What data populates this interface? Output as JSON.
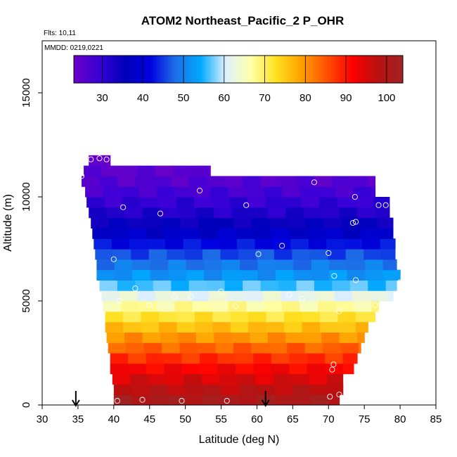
{
  "title": "ATOM2 Northeast_Pacific_2 P_OHR",
  "flights_note": "Flts: 10,11",
  "dates_note": "MMDD: 0219,0221",
  "chart_data": {
    "type": "heatmap",
    "title": "ATOM2 Northeast_Pacific_2 P_OHR",
    "xlabel": "Latitude (deg N)",
    "ylabel": "Altitude (m)",
    "xlim": [
      30,
      85
    ],
    "ylim": [
      0,
      17500
    ],
    "x_ticks": [
      "30",
      "35",
      "40",
      "45",
      "50",
      "55",
      "60",
      "65",
      "70",
      "75",
      "80",
      "85"
    ],
    "y_ticks": [
      "0",
      "5000",
      "10000",
      "15000"
    ],
    "colorbar": {
      "range": [
        23,
        104
      ],
      "ticks": [
        "30",
        "40",
        "50",
        "60",
        "70",
        "80",
        "90",
        "100"
      ],
      "colors": [
        "#6c00c8",
        "#3a00d8",
        "#0000b8",
        "#0000e0",
        "#1e6ee6",
        "#00a8ff",
        "#dff0ff",
        "#ffffa8",
        "#ffe020",
        "#ffa000",
        "#ff5000",
        "#ff0000",
        "#b81010",
        "#a02424"
      ]
    },
    "profile_rows": [
      {
        "alt_bottom": 0,
        "alt_top": 500,
        "lat_min": 40.0,
        "lat_max": 71.5,
        "value": 101
      },
      {
        "alt_bottom": 500,
        "alt_top": 1000,
        "lat_min": 40.0,
        "lat_max": 72.0,
        "value": 98
      },
      {
        "alt_bottom": 1000,
        "alt_top": 1500,
        "lat_min": 39.8,
        "lat_max": 72.0,
        "value": 95
      },
      {
        "alt_bottom": 1500,
        "alt_top": 2000,
        "lat_min": 39.5,
        "lat_max": 73.5,
        "value": 92
      },
      {
        "alt_bottom": 2000,
        "alt_top": 2500,
        "lat_min": 39.5,
        "lat_max": 74.0,
        "value": 88
      },
      {
        "alt_bottom": 2500,
        "alt_top": 3000,
        "lat_min": 39.2,
        "lat_max": 74.5,
        "value": 84
      },
      {
        "alt_bottom": 3000,
        "alt_top": 3500,
        "lat_min": 39.0,
        "lat_max": 75.0,
        "value": 80
      },
      {
        "alt_bottom": 3500,
        "alt_top": 4000,
        "lat_min": 38.8,
        "lat_max": 75.5,
        "value": 76
      },
      {
        "alt_bottom": 4000,
        "alt_top": 4500,
        "lat_min": 38.8,
        "lat_max": 76.5,
        "value": 72
      },
      {
        "alt_bottom": 4500,
        "alt_top": 5000,
        "lat_min": 38.5,
        "lat_max": 77.0,
        "value": 67
      },
      {
        "alt_bottom": 5000,
        "alt_top": 5500,
        "lat_min": 38.3,
        "lat_max": 79.0,
        "value": 62
      },
      {
        "alt_bottom": 5500,
        "alt_top": 6000,
        "lat_min": 38.0,
        "lat_max": 79.5,
        "value": 56
      },
      {
        "alt_bottom": 6000,
        "alt_top": 6500,
        "lat_min": 37.6,
        "lat_max": 80.0,
        "value": 52
      },
      {
        "alt_bottom": 6500,
        "alt_top": 7000,
        "lat_min": 37.6,
        "lat_max": 79.5,
        "value": 49
      },
      {
        "alt_bottom": 7000,
        "alt_top": 7500,
        "lat_min": 37.4,
        "lat_max": 79.3,
        "value": 46
      },
      {
        "alt_bottom": 7500,
        "alt_top": 8000,
        "lat_min": 37.2,
        "lat_max": 79.3,
        "value": 42
      },
      {
        "alt_bottom": 8000,
        "alt_top": 8500,
        "lat_min": 37.0,
        "lat_max": 79.0,
        "value": 38
      },
      {
        "alt_bottom": 8500,
        "alt_top": 9000,
        "lat_min": 36.8,
        "lat_max": 79.0,
        "value": 35
      },
      {
        "alt_bottom": 9000,
        "alt_top": 9500,
        "lat_min": 36.5,
        "lat_max": 78.5,
        "value": 32
      },
      {
        "alt_bottom": 9500,
        "alt_top": 10000,
        "lat_min": 36.2,
        "lat_max": 78.5,
        "value": 30
      },
      {
        "alt_bottom": 10000,
        "alt_top": 10500,
        "lat_min": 36.0,
        "lat_max": 76.5,
        "value": 28
      },
      {
        "alt_bottom": 10500,
        "alt_top": 11000,
        "lat_min": 35.5,
        "lat_max": 76.5,
        "value": 26
      },
      {
        "alt_bottom": 11000,
        "alt_top": 11500,
        "lat_min": 35.8,
        "lat_max": 53.5,
        "value": 25
      },
      {
        "alt_bottom": 11500,
        "alt_top": 12000,
        "lat_min": 36.5,
        "lat_max": 39.5,
        "value": 24
      }
    ],
    "observations": [
      {
        "lat": 40.5,
        "alt": 200
      },
      {
        "lat": 44.0,
        "alt": 250
      },
      {
        "lat": 49.5,
        "alt": 200
      },
      {
        "lat": 55.8,
        "alt": 200
      },
      {
        "lat": 70.2,
        "alt": 400
      },
      {
        "lat": 71.5,
        "alt": 500
      },
      {
        "lat": 70.5,
        "alt": 1700
      },
      {
        "lat": 70.7,
        "alt": 1950
      },
      {
        "lat": 40.8,
        "alt": 5000
      },
      {
        "lat": 45.0,
        "alt": 4800
      },
      {
        "lat": 48.5,
        "alt": 5200
      },
      {
        "lat": 50.8,
        "alt": 5200
      },
      {
        "lat": 55.0,
        "alt": 5450
      },
      {
        "lat": 57.0,
        "alt": 4750
      },
      {
        "lat": 64.5,
        "alt": 5300
      },
      {
        "lat": 66.3,
        "alt": 5100
      },
      {
        "lat": 71.5,
        "alt": 4500
      },
      {
        "lat": 76.5,
        "alt": 4800
      },
      {
        "lat": 80.0,
        "alt": 5900
      },
      {
        "lat": 73.8,
        "alt": 6000
      },
      {
        "lat": 70.8,
        "alt": 6200
      },
      {
        "lat": 43.0,
        "alt": 5600
      },
      {
        "lat": 40.0,
        "alt": 7000
      },
      {
        "lat": 60.2,
        "alt": 7250
      },
      {
        "lat": 63.5,
        "alt": 7650
      },
      {
        "lat": 70.0,
        "alt": 7300
      },
      {
        "lat": 41.3,
        "alt": 9500
      },
      {
        "lat": 46.5,
        "alt": 9200
      },
      {
        "lat": 58.5,
        "alt": 9600
      },
      {
        "lat": 73.4,
        "alt": 8750
      },
      {
        "lat": 73.8,
        "alt": 8800
      },
      {
        "lat": 77.0,
        "alt": 9600
      },
      {
        "lat": 78.0,
        "alt": 9600
      },
      {
        "lat": 52.0,
        "alt": 10300
      },
      {
        "lat": 68.0,
        "alt": 10700
      },
      {
        "lat": 73.7,
        "alt": 10000
      },
      {
        "lat": 35.5,
        "alt": 11000
      },
      {
        "lat": 36.8,
        "alt": 11800
      },
      {
        "lat": 38.0,
        "alt": 11850
      },
      {
        "lat": 39.0,
        "alt": 11800
      }
    ],
    "markers": [
      {
        "lat": 34.7,
        "label": "arrow"
      },
      {
        "lat": 61.2,
        "label": "arrow"
      }
    ]
  }
}
